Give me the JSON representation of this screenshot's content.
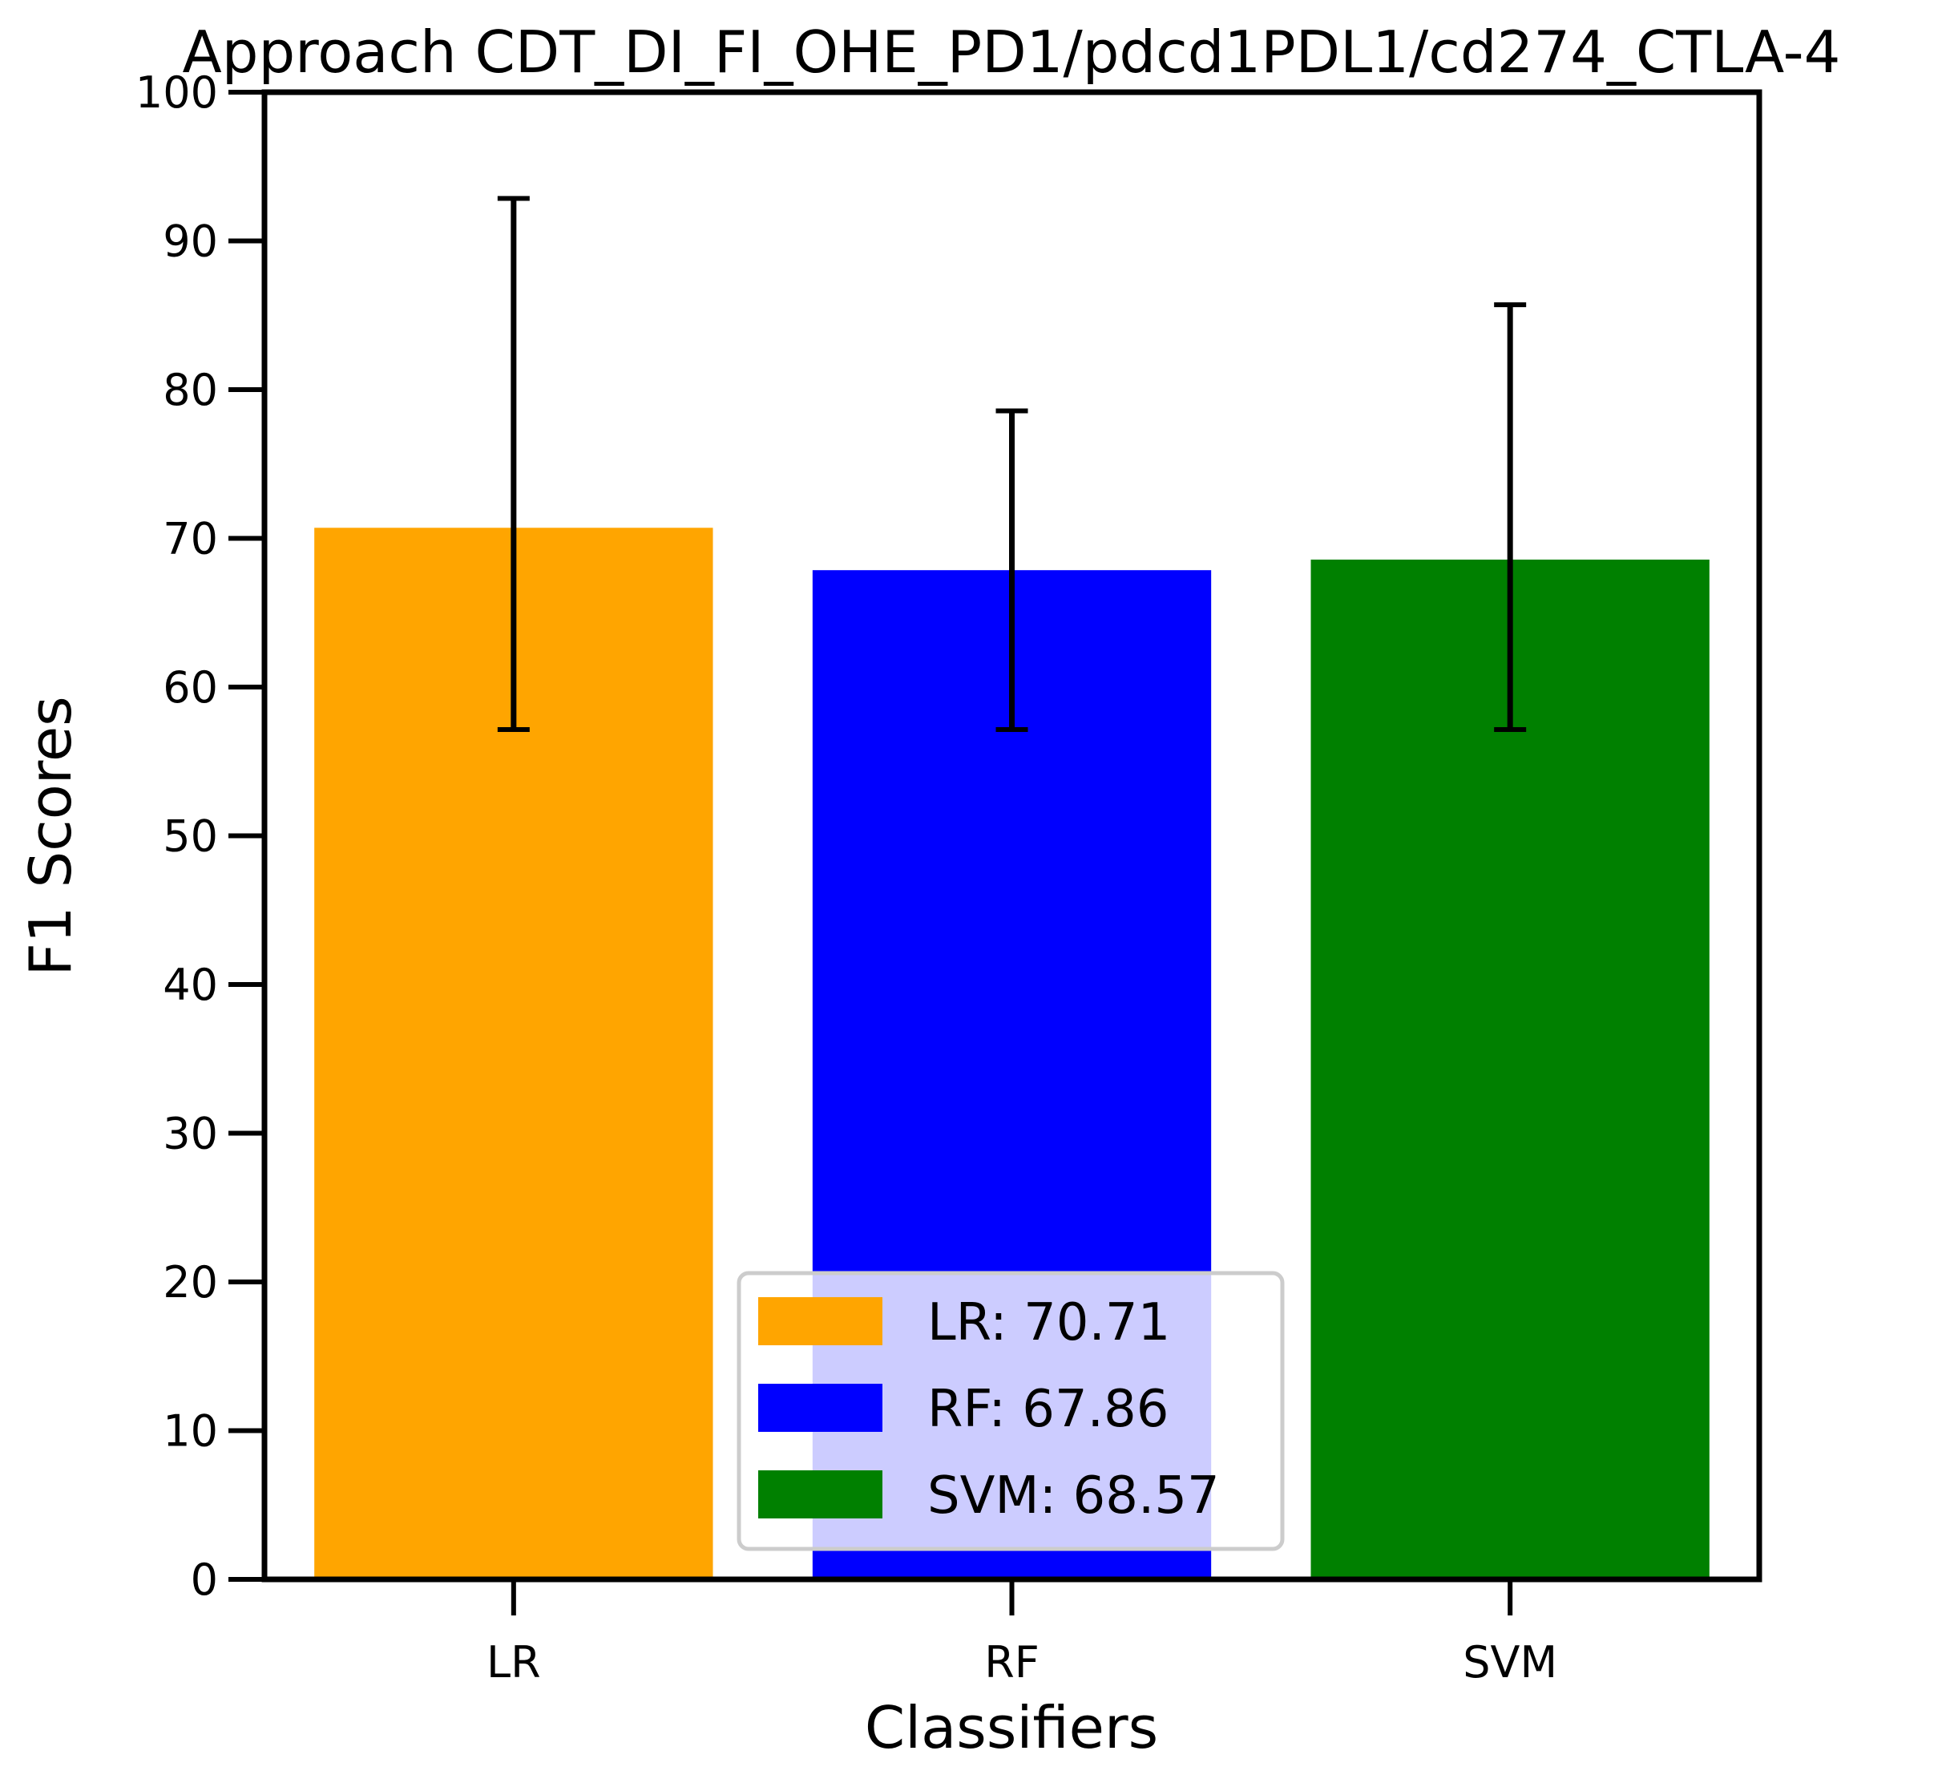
{
  "chart_data": {
    "type": "bar",
    "title": "Approach CDT_DI_FI_OHE_PD1/pdcd1PDL1/cd274_CTLA-4",
    "xlabel": "Classifiers",
    "ylabel": "F1 Scores",
    "ylim": [
      0,
      100
    ],
    "yticks": [
      "0",
      "10",
      "20",
      "30",
      "40",
      "50",
      "60",
      "70",
      "80",
      "90",
      "100"
    ],
    "categories": [
      "LR",
      "RF",
      "SVM"
    ],
    "values": [
      70.71,
      67.86,
      68.57
    ],
    "error_low": [
      57.14,
      57.14,
      57.14
    ],
    "error_high": [
      92.86,
      78.57,
      85.71
    ],
    "colors": [
      "#ffa500",
      "#0000ff",
      "#008000"
    ],
    "grid": false,
    "legend": {
      "placement": "lower-center",
      "entries": [
        "LR: 70.71",
        "RF: 67.86",
        "SVM: 68.57"
      ]
    }
  }
}
